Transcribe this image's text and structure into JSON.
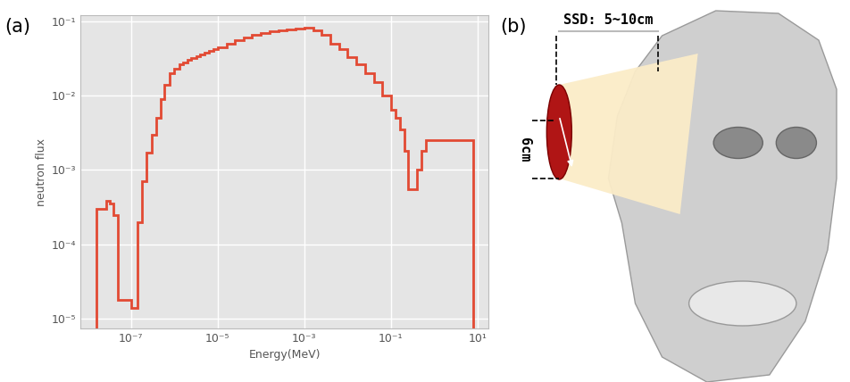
{
  "chart_data": {
    "type": "step",
    "annotations": [
      "(a)"
    ],
    "x_label": "Energy(MeV)",
    "y_label": "neutron flux",
    "log": true,
    "grid": true,
    "color": "#e24a33",
    "bins": [
      1.6e-08,
      2.7e-08,
      3.3e-08,
      4e-08,
      5e-08,
      1e-07,
      1.4e-07,
      1.8e-07,
      2.3e-07,
      3e-07,
      3.8e-07,
      4.8e-07,
      6e-07,
      8e-07,
      1e-06,
      1.3e-06,
      1.6e-06,
      2e-06,
      2.5e-06,
      3.2e-06,
      4e-06,
      5e-06,
      6.3e-06,
      8e-06,
      1e-05,
      1.6e-05,
      2.5e-05,
      4e-05,
      6.3e-05,
      0.0001,
      0.00016,
      0.00025,
      0.0004,
      0.00063,
      0.001,
      0.0016,
      0.0025,
      0.004,
      0.0063,
      0.01,
      0.016,
      0.025,
      0.04,
      0.063,
      0.1,
      0.13,
      0.16,
      0.2,
      0.25,
      0.32,
      0.4,
      0.5,
      0.63,
      0.8,
      1,
      2,
      4,
      8
    ],
    "values": [
      0.0003,
      0.00039,
      0.00035,
      0.00025,
      1.8e-05,
      1.4e-05,
      0.0002,
      0.0007,
      0.0017,
      0.003,
      0.005,
      0.009,
      0.014,
      0.02,
      0.023,
      0.026,
      0.028,
      0.03,
      0.032,
      0.034,
      0.036,
      0.038,
      0.04,
      0.042,
      0.045,
      0.05,
      0.055,
      0.06,
      0.065,
      0.07,
      0.073,
      0.075,
      0.078,
      0.08,
      0.082,
      0.075,
      0.065,
      0.05,
      0.042,
      0.033,
      0.026,
      0.02,
      0.015,
      0.01,
      0.0065,
      0.005,
      0.0035,
      0.0018,
      0.00055,
      0.00055,
      0.001,
      0.0018,
      0.0025,
      0.0025,
      0.0025,
      0.0025,
      0.0025
    ],
    "xlim": [
      7e-09,
      18
    ],
    "ylim": [
      7.4e-06,
      0.12
    ],
    "xticks": [
      {
        "value": 1e-07,
        "label": "10⁻⁷"
      },
      {
        "value": 1e-05,
        "label": "10⁻⁵"
      },
      {
        "value": 0.001,
        "label": "10⁻³"
      },
      {
        "value": 0.1,
        "label": "10⁻¹"
      },
      {
        "value": 10,
        "label": "10¹"
      }
    ],
    "yticks": [
      {
        "value": 1e-05,
        "label": "10⁻⁵"
      },
      {
        "value": 0.0001,
        "label": "10⁻⁴"
      },
      {
        "value": 0.001,
        "label": "10⁻³"
      },
      {
        "value": 0.01,
        "label": "10⁻²"
      },
      {
        "value": 0.1,
        "label": "10⁻¹"
      }
    ]
  },
  "diagram": {
    "label": "(b)",
    "ssd_label": "SSD: 5~10cm",
    "diameter_label": "6cm"
  }
}
